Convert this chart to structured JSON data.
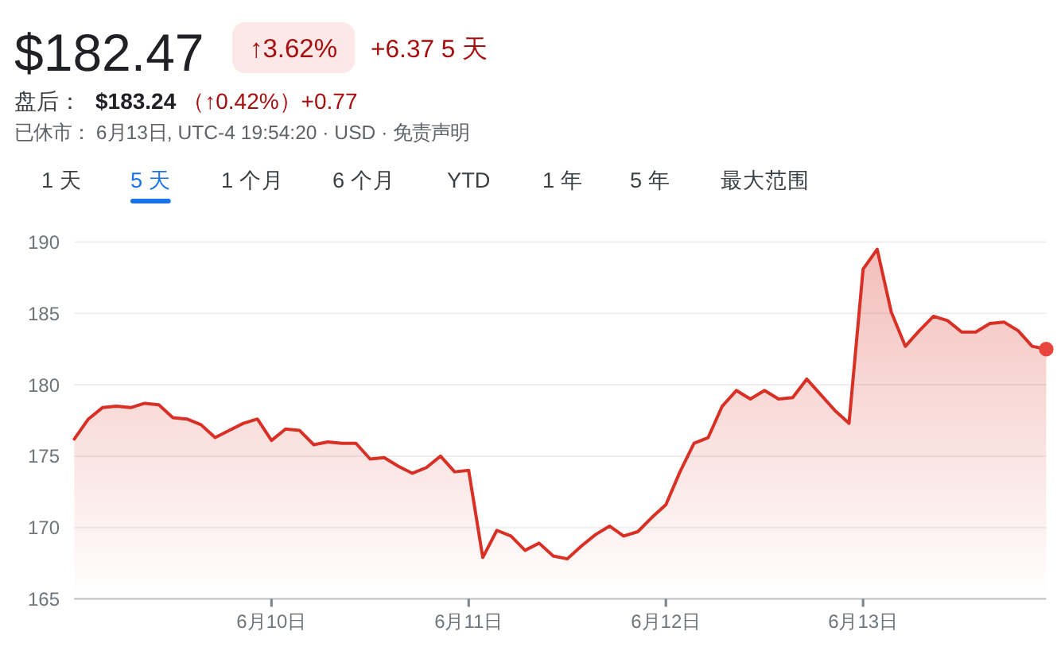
{
  "chart_data": {
    "type": "area",
    "title": "$182.47",
    "annotations": [
      "↑3.62%",
      "+6.37 5 天",
      "盘后：",
      "$183.24",
      "（↑0.42%）+0.77",
      "已休市： 6月13日, UTC-4 19:54:20 · USD · 免责声明",
      "1 天",
      "5 天",
      "1 个月",
      "6 个月",
      "YTD",
      "1 年",
      "5 年",
      "最大范围"
    ],
    "categories": [
      null,
      null,
      null,
      null,
      null,
      null,
      null,
      null,
      null,
      null,
      null,
      null,
      null,
      null,
      "6月10日",
      null,
      null,
      null,
      null,
      null,
      null,
      null,
      null,
      null,
      null,
      null,
      null,
      null,
      "6月11日",
      null,
      null,
      null,
      null,
      null,
      null,
      null,
      null,
      null,
      null,
      null,
      null,
      null,
      "6月12日",
      null,
      null,
      null,
      null,
      null,
      null,
      null,
      null,
      null,
      null,
      null,
      null,
      null,
      "6月13日",
      null,
      null,
      null,
      null,
      null,
      null,
      null,
      null,
      null,
      null,
      null,
      null,
      null
    ],
    "ylim": [
      165,
      190
    ],
    "yticks": [
      165,
      170,
      175,
      180,
      185,
      190
    ],
    "grid": "y",
    "series": [
      {
        "color": "#d93025",
        "values": [
          176.2,
          177.6,
          178.4,
          178.5,
          178.4,
          178.7,
          178.6,
          177.7,
          177.6,
          177.2,
          176.3,
          176.8,
          177.3,
          177.6,
          176.1,
          176.9,
          176.8,
          175.8,
          176.0,
          175.9,
          175.9,
          174.8,
          174.9,
          174.3,
          173.8,
          174.2,
          175.0,
          173.9,
          174.0,
          167.9,
          169.8,
          169.4,
          168.4,
          168.9,
          168.0,
          167.8,
          168.7,
          169.5,
          170.1,
          169.4,
          169.7,
          170.7,
          171.6,
          173.9,
          175.9,
          176.3,
          178.5,
          179.6,
          179.0,
          179.6,
          179.0,
          179.1,
          180.4,
          179.3,
          178.2,
          177.3,
          188.1,
          189.5,
          185.1,
          182.7,
          183.8,
          184.8,
          184.5,
          183.7,
          183.7,
          184.3,
          184.4,
          183.8,
          182.7,
          182.5
        ]
      },
      {
        "type": "scatter",
        "marker": "circle",
        "color": "#e8453c",
        "values": [
          null,
          null,
          null,
          null,
          null,
          null,
          null,
          null,
          null,
          null,
          null,
          null,
          null,
          null,
          null,
          null,
          null,
          null,
          null,
          null,
          null,
          null,
          null,
          null,
          null,
          null,
          null,
          null,
          null,
          null,
          null,
          null,
          null,
          null,
          null,
          null,
          null,
          null,
          null,
          null,
          null,
          null,
          null,
          null,
          null,
          null,
          null,
          null,
          null,
          null,
          null,
          null,
          null,
          null,
          null,
          null,
          null,
          null,
          null,
          null,
          null,
          null,
          null,
          null,
          null,
          null,
          null,
          null,
          null,
          182.5
        ]
      }
    ]
  }
}
